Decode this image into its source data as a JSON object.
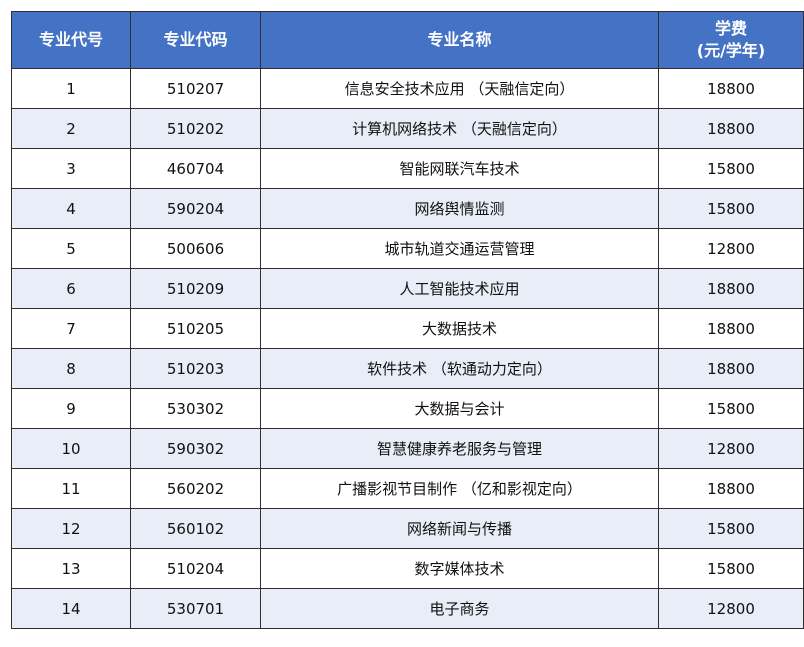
{
  "table": {
    "headers": {
      "code_no": "专业代号",
      "major_code": "专业代码",
      "major_name": "专业名称",
      "tuition_line1": "学费",
      "tuition_line2": "(元/学年)"
    },
    "rows": [
      {
        "no": "1",
        "code": "510207",
        "name": "信息安全技术应用 （天融信定向）",
        "fee": "18800"
      },
      {
        "no": "2",
        "code": "510202",
        "name": "计算机网络技术 （天融信定向）",
        "fee": "18800"
      },
      {
        "no": "3",
        "code": "460704",
        "name": "智能网联汽车技术",
        "fee": "15800"
      },
      {
        "no": "4",
        "code": "590204",
        "name": "网络舆情监测",
        "fee": "15800"
      },
      {
        "no": "5",
        "code": "500606",
        "name": "城市轨道交通运营管理",
        "fee": "12800"
      },
      {
        "no": "6",
        "code": "510209",
        "name": "人工智能技术应用",
        "fee": "18800"
      },
      {
        "no": "7",
        "code": "510205",
        "name": "大数据技术",
        "fee": "18800"
      },
      {
        "no": "8",
        "code": "510203",
        "name": "软件技术 （软通动力定向）",
        "fee": "18800"
      },
      {
        "no": "9",
        "code": "530302",
        "name": "大数据与会计",
        "fee": "15800"
      },
      {
        "no": "10",
        "code": "590302",
        "name": "智慧健康养老服务与管理",
        "fee": "12800"
      },
      {
        "no": "11",
        "code": "560202",
        "name": "广播影视节目制作 （亿和影视定向）",
        "fee": "18800"
      },
      {
        "no": "12",
        "code": "560102",
        "name": "网络新闻与传播",
        "fee": "15800"
      },
      {
        "no": "13",
        "code": "510204",
        "name": "数字媒体技术",
        "fee": "15800"
      },
      {
        "no": "14",
        "code": "530701",
        "name": "电子商务",
        "fee": "12800"
      }
    ]
  }
}
